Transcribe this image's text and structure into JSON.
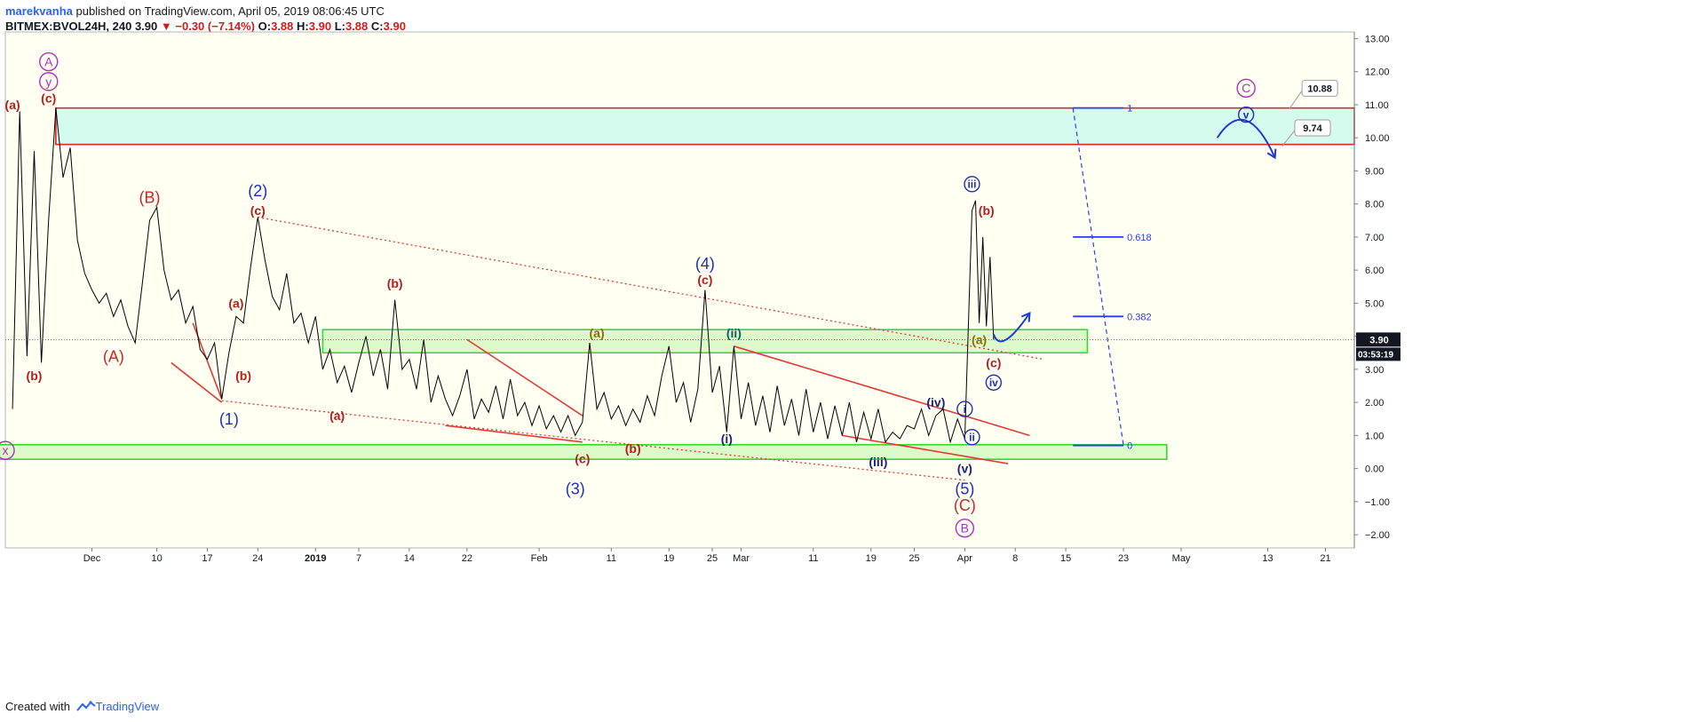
{
  "header": {
    "author": "marekvanha",
    "published_text": " published on TradingView.com, April 05, 2019 08:06:45 UTC",
    "symbol": "BITMEX:BVOL24H, 240",
    "last": "3.90",
    "change": "−0.30 (−7.14%)",
    "ohlc": [
      {
        "k": "O:",
        "v": "3.88"
      },
      {
        "k": "H:",
        "v": "3.90"
      },
      {
        "k": "L:",
        "v": "3.88"
      },
      {
        "k": "C:",
        "v": "3.90"
      }
    ]
  },
  "footer": {
    "prefix": "Created with",
    "brand": "TradingView"
  },
  "colors": {
    "background": "#fffff2",
    "price_line": "#000000",
    "red_wave": "#b71c1c",
    "blue_wave": "#1e2fb5",
    "purple_wave": "#b02dbf",
    "zone_green_fill": "#dbf9c9",
    "zone_green_stroke": "#39d739",
    "zone_cyan_fill": "#d5fbef",
    "zone_cyan_stroke": "#e0241f",
    "fib_blue": "#2a3df0"
  },
  "chart_data": {
    "type": "line",
    "symbol": "BITMEX:BVOL24H",
    "timeframe": "240",
    "y_axis": {
      "ticks": [
        "13.00",
        "12.00",
        "11.00",
        "10.00",
        "9.00",
        "8.00",
        "7.00",
        "6.00",
        "5.00",
        "4.00",
        "3.00",
        "2.00",
        "1.00",
        "0.00",
        "−1.00",
        "−2.00"
      ],
      "ylim": [
        -2.4,
        13.2
      ],
      "last_price_label": "3.90",
      "countdown_label": "03:53:19"
    },
    "x_axis": {
      "ticks": [
        {
          "label": "Dec",
          "x": "2018-12-01"
        },
        {
          "label": "10",
          "x": "2018-12-10"
        },
        {
          "label": "17",
          "x": "2018-12-17"
        },
        {
          "label": "24",
          "x": "2018-12-24"
        },
        {
          "label": "2019",
          "x": "2019-01-01",
          "bold": true
        },
        {
          "label": "7",
          "x": "2019-01-07"
        },
        {
          "label": "14",
          "x": "2019-01-14"
        },
        {
          "label": "22",
          "x": "2019-01-22"
        },
        {
          "label": "Feb",
          "x": "2019-02-01"
        },
        {
          "label": "11",
          "x": "2019-02-11"
        },
        {
          "label": "19",
          "x": "2019-02-19"
        },
        {
          "label": "25",
          "x": "2019-02-25"
        },
        {
          "label": "Mar",
          "x": "2019-03-01"
        },
        {
          "label": "11",
          "x": "2019-03-11"
        },
        {
          "label": "19",
          "x": "2019-03-19"
        },
        {
          "label": "25",
          "x": "2019-03-25"
        },
        {
          "label": "Apr",
          "x": "2019-04-01"
        },
        {
          "label": "8",
          "x": "2019-04-08"
        },
        {
          "label": "15",
          "x": "2019-04-15"
        },
        {
          "label": "23",
          "x": "2019-04-23"
        },
        {
          "label": "May",
          "x": "2019-05-01"
        },
        {
          "label": "13",
          "x": "2019-05-13"
        },
        {
          "label": "21",
          "x": "2019-05-21"
        }
      ]
    },
    "series": [
      {
        "values": [
          [
            "2018-11-20",
            1.8
          ],
          [
            "2018-11-21",
            10.8
          ],
          [
            "2018-11-22",
            3.4
          ],
          [
            "2018-11-23",
            9.6
          ],
          [
            "2018-11-24",
            3.2
          ],
          [
            "2018-11-25",
            7.5
          ],
          [
            "2018-11-26",
            10.9
          ],
          [
            "2018-11-27",
            8.8
          ],
          [
            "2018-11-28",
            9.7
          ],
          [
            "2018-11-29",
            6.9
          ],
          [
            "2018-11-30",
            5.9
          ],
          [
            "2018-12-01",
            5.4
          ],
          [
            "2018-12-02",
            5.0
          ],
          [
            "2018-12-03",
            5.3
          ],
          [
            "2018-12-04",
            4.6
          ],
          [
            "2018-12-05",
            5.1
          ],
          [
            "2018-12-06",
            4.3
          ],
          [
            "2018-12-07",
            3.8
          ],
          [
            "2018-12-08",
            5.6
          ],
          [
            "2018-12-09",
            7.5
          ],
          [
            "2018-12-10",
            7.9
          ],
          [
            "2018-12-11",
            6.0
          ],
          [
            "2018-12-12",
            5.1
          ],
          [
            "2018-12-13",
            5.4
          ],
          [
            "2018-12-14",
            4.4
          ],
          [
            "2018-12-15",
            4.9
          ],
          [
            "2018-12-16",
            3.6
          ],
          [
            "2018-12-17",
            3.3
          ],
          [
            "2018-12-18",
            3.8
          ],
          [
            "2018-12-19",
            2.1
          ],
          [
            "2018-12-20",
            3.5
          ],
          [
            "2018-12-21",
            4.6
          ],
          [
            "2018-12-22",
            4.4
          ],
          [
            "2018-12-23",
            6.1
          ],
          [
            "2018-12-24",
            7.6
          ],
          [
            "2018-12-25",
            6.3
          ],
          [
            "2018-12-26",
            5.2
          ],
          [
            "2018-12-27",
            4.8
          ],
          [
            "2018-12-28",
            5.9
          ],
          [
            "2018-12-29",
            4.4
          ],
          [
            "2018-12-30",
            4.7
          ],
          [
            "2018-12-31",
            3.8
          ],
          [
            "2019-01-01",
            4.6
          ],
          [
            "2019-01-02",
            3.0
          ],
          [
            "2019-01-03",
            3.6
          ],
          [
            "2019-01-04",
            2.6
          ],
          [
            "2019-01-05",
            3.1
          ],
          [
            "2019-01-06",
            2.3
          ],
          [
            "2019-01-07",
            3.2
          ],
          [
            "2019-01-08",
            4.0
          ],
          [
            "2019-01-09",
            2.8
          ],
          [
            "2019-01-10",
            3.6
          ],
          [
            "2019-01-11",
            2.4
          ],
          [
            "2019-01-12",
            5.1
          ],
          [
            "2019-01-13",
            3.0
          ],
          [
            "2019-01-14",
            3.3
          ],
          [
            "2019-01-15",
            2.4
          ],
          [
            "2019-01-16",
            3.9
          ],
          [
            "2019-01-17",
            2.0
          ],
          [
            "2019-01-18",
            2.8
          ],
          [
            "2019-01-19",
            2.1
          ],
          [
            "2019-01-20",
            1.6
          ],
          [
            "2019-01-21",
            2.2
          ],
          [
            "2019-01-22",
            3.0
          ],
          [
            "2019-01-23",
            1.5
          ],
          [
            "2019-01-24",
            2.1
          ],
          [
            "2019-01-25",
            1.7
          ],
          [
            "2019-01-26",
            2.5
          ],
          [
            "2019-01-27",
            1.5
          ],
          [
            "2019-01-28",
            2.7
          ],
          [
            "2019-01-29",
            1.6
          ],
          [
            "2019-01-30",
            2.0
          ],
          [
            "2019-01-31",
            1.3
          ],
          [
            "2019-02-01",
            1.9
          ],
          [
            "2019-02-02",
            1.2
          ],
          [
            "2019-02-03",
            1.6
          ],
          [
            "2019-02-04",
            1.1
          ],
          [
            "2019-02-05",
            1.6
          ],
          [
            "2019-02-06",
            1.0
          ],
          [
            "2019-02-07",
            1.4
          ],
          [
            "2019-02-08",
            3.8
          ],
          [
            "2019-02-09",
            1.8
          ],
          [
            "2019-02-10",
            2.3
          ],
          [
            "2019-02-11",
            1.5
          ],
          [
            "2019-02-12",
            1.9
          ],
          [
            "2019-02-13",
            1.3
          ],
          [
            "2019-02-14",
            1.8
          ],
          [
            "2019-02-15",
            1.4
          ],
          [
            "2019-02-16",
            2.2
          ],
          [
            "2019-02-17",
            1.6
          ],
          [
            "2019-02-18",
            2.8
          ],
          [
            "2019-02-19",
            3.7
          ],
          [
            "2019-02-20",
            2.0
          ],
          [
            "2019-02-21",
            2.6
          ],
          [
            "2019-02-22",
            1.4
          ],
          [
            "2019-02-23",
            2.4
          ],
          [
            "2019-02-24",
            5.4
          ],
          [
            "2019-02-25",
            2.3
          ],
          [
            "2019-02-26",
            3.1
          ],
          [
            "2019-02-27",
            1.1
          ],
          [
            "2019-02-28",
            3.7
          ],
          [
            "2019-03-01",
            1.5
          ],
          [
            "2019-03-02",
            2.6
          ],
          [
            "2019-03-03",
            1.3
          ],
          [
            "2019-03-04",
            2.2
          ],
          [
            "2019-03-05",
            1.1
          ],
          [
            "2019-03-06",
            2.5
          ],
          [
            "2019-03-07",
            1.3
          ],
          [
            "2019-03-08",
            2.1
          ],
          [
            "2019-03-09",
            1.0
          ],
          [
            "2019-03-10",
            2.4
          ],
          [
            "2019-03-11",
            1.1
          ],
          [
            "2019-03-12",
            2.0
          ],
          [
            "2019-03-13",
            0.9
          ],
          [
            "2019-03-14",
            1.9
          ],
          [
            "2019-03-15",
            1.0
          ],
          [
            "2019-03-16",
            2.0
          ],
          [
            "2019-03-17",
            0.8
          ],
          [
            "2019-03-18",
            1.7
          ],
          [
            "2019-03-19",
            0.9
          ],
          [
            "2019-03-20",
            1.8
          ],
          [
            "2019-03-21",
            0.8
          ],
          [
            "2019-03-22",
            1.1
          ],
          [
            "2019-03-23",
            0.9
          ],
          [
            "2019-03-24",
            1.3
          ],
          [
            "2019-03-25",
            1.2
          ],
          [
            "2019-03-26",
            1.8
          ],
          [
            "2019-03-27",
            1.0
          ],
          [
            "2019-03-28",
            1.6
          ],
          [
            "2019-03-29",
            1.8
          ],
          [
            "2019-03-30",
            0.8
          ],
          [
            "2019-03-31",
            1.5
          ],
          [
            "2019-04-01",
            0.9
          ],
          [
            "2019-04-02",
            7.8
          ],
          [
            "2019-04-02T12:00",
            8.1
          ],
          [
            "2019-04-03",
            4.4
          ],
          [
            "2019-04-03T12:00",
            7.0
          ],
          [
            "2019-04-04",
            4.3
          ],
          [
            "2019-04-04T12:00",
            6.4
          ],
          [
            "2019-04-05",
            3.9
          ]
        ]
      }
    ],
    "zones": [
      {
        "name": "upper-target-zone",
        "from": "2018-11-26",
        "to": "2019-06-01",
        "y_low": 9.8,
        "y_high": 10.9
      },
      {
        "name": "middle-zone",
        "from": "2019-01-02",
        "to": "2019-04-18",
        "y_low": 3.5,
        "y_high": 4.2
      },
      {
        "name": "lower-zone",
        "from": "2018-11-18",
        "to": "2019-04-29",
        "y_low": 0.28,
        "y_high": 0.72
      }
    ],
    "fib_levels": [
      {
        "label": "1",
        "y": 10.9
      },
      {
        "label": "0.618",
        "y": 7.0
      },
      {
        "label": "0.382",
        "y": 4.6
      },
      {
        "label": "0",
        "y": 0.7
      }
    ],
    "price_callouts": [
      "10.88",
      "9.74"
    ],
    "wave_labels": [
      {
        "text": "A",
        "style": "purple-circle",
        "x": "2018-11-25",
        "y": 12.3
      },
      {
        "text": "y",
        "style": "purple-circle",
        "x": "2018-11-25",
        "y": 11.7
      },
      {
        "text": "(a)",
        "style": "red-small",
        "x": "2018-11-20",
        "y": 11.0
      },
      {
        "text": "(c)",
        "style": "red-small",
        "x": "2018-11-25",
        "y": 11.2
      },
      {
        "text": "(b)",
        "style": "red-small",
        "x": "2018-11-23",
        "y": 2.8
      },
      {
        "text": "x",
        "style": "purple-circle",
        "x": "2018-11-19",
        "y": 0.55
      },
      {
        "text": "(B)",
        "style": "red-big",
        "x": "2018-12-09",
        "y": 8.2
      },
      {
        "text": "(A)",
        "style": "red-big",
        "x": "2018-12-04",
        "y": 3.4
      },
      {
        "text": "(2)",
        "style": "blue-big",
        "x": "2018-12-24",
        "y": 8.4
      },
      {
        "text": "(c)",
        "style": "red-small",
        "x": "2018-12-24",
        "y": 7.8
      },
      {
        "text": "(a)",
        "style": "red-small",
        "x": "2018-12-21",
        "y": 5.0
      },
      {
        "text": "(b)",
        "style": "red-small",
        "x": "2018-12-22",
        "y": 2.8
      },
      {
        "text": "(1)",
        "style": "blue-big",
        "x": "2018-12-20",
        "y": 1.5
      },
      {
        "text": "(a)",
        "style": "red-small",
        "x": "2019-01-04",
        "y": 1.6
      },
      {
        "text": "(b)",
        "style": "red-small",
        "x": "2019-01-12",
        "y": 5.6
      },
      {
        "text": "(a)",
        "style": "olive-small",
        "x": "2019-02-09",
        "y": 4.1
      },
      {
        "text": "(c)",
        "style": "red-small",
        "x": "2019-02-07",
        "y": 0.3
      },
      {
        "text": "(b)",
        "style": "red-small",
        "x": "2019-02-14",
        "y": 0.6
      },
      {
        "text": "(3)",
        "style": "blue-big",
        "x": "2019-02-06",
        "y": -0.6
      },
      {
        "text": "(4)",
        "style": "blue-big",
        "x": "2019-02-24",
        "y": 6.2
      },
      {
        "text": "(c)",
        "style": "red-small",
        "x": "2019-02-24",
        "y": 5.7
      },
      {
        "text": "(ii)",
        "style": "teal-small",
        "x": "2019-02-28",
        "y": 4.1
      },
      {
        "text": "(i)",
        "style": "blue-small",
        "x": "2019-02-27",
        "y": 0.9
      },
      {
        "text": "(iii)",
        "style": "blue-small",
        "x": "2019-03-20",
        "y": 0.2
      },
      {
        "text": "(iv)",
        "style": "blue-small",
        "x": "2019-03-28",
        "y": 2.0
      },
      {
        "text": "i",
        "style": "blue-circle",
        "x": "2019-04-01",
        "y": 1.8
      },
      {
        "text": "ii",
        "style": "blue-circle",
        "x": "2019-04-02",
        "y": 0.95
      },
      {
        "text": "(v)",
        "style": "blue-small",
        "x": "2019-04-01",
        "y": 0.0
      },
      {
        "text": "(5)",
        "style": "blue-big",
        "x": "2019-04-01",
        "y": -0.6
      },
      {
        "text": "(C)",
        "style": "red-big",
        "x": "2019-04-01",
        "y": -1.1
      },
      {
        "text": "B",
        "style": "purple-circle",
        "x": "2019-04-01",
        "y": -1.8
      },
      {
        "text": "iii",
        "style": "blue-circle",
        "x": "2019-04-02",
        "y": 8.6
      },
      {
        "text": "(b)",
        "style": "red-small",
        "x": "2019-04-04",
        "y": 7.8
      },
      {
        "text": "(a)",
        "style": "olive-small",
        "x": "2019-04-03",
        "y": 3.9
      },
      {
        "text": "(c)",
        "style": "red-small",
        "x": "2019-04-05",
        "y": 3.2
      },
      {
        "text": "iv",
        "style": "blue-circle",
        "x": "2019-04-05",
        "y": 2.6
      },
      {
        "text": "C",
        "style": "purple-circle",
        "x": "2019-05-10",
        "y": 11.5
      },
      {
        "text": "v",
        "style": "blue-circle",
        "x": "2019-05-10",
        "y": 10.7
      }
    ]
  }
}
